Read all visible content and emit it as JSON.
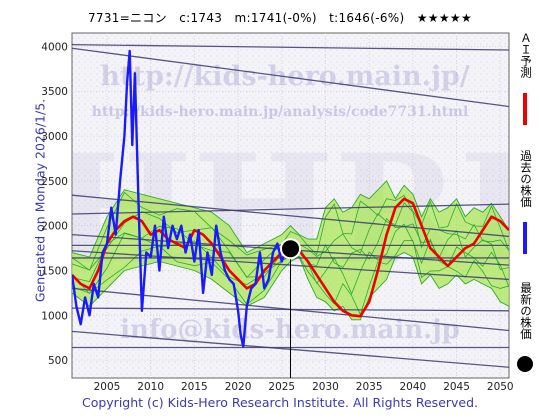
{
  "header": {
    "title": "7731=ニコン　c:1743　m:1741(-0%)　t:1646(-6%)　★★★★★"
  },
  "ylabel": "Generated on Monday 2026/1/5.",
  "footer": "Copyright (c) Kids-Hero Research Institute. All Rights Reserved.",
  "watermarks": {
    "site": "http://kids-hero.main.jp/",
    "page": "http://kids-hero.main.jp/analysis/code7731.html",
    "email": "info@kids-hero.main.jp",
    "logo": "HHRI"
  },
  "legend": {
    "ai": "ＡＩ予測",
    "past": "過去の株価",
    "latest": "最新の株価"
  },
  "colors": {
    "past": "#1a1aff",
    "ai": "#ee0000",
    "band_fill": "#a6e64d",
    "band_line": "#2eaa2e",
    "trend": "#3b3b6e",
    "dot": "#000000"
  },
  "chart_data": {
    "type": "line",
    "xlim": [
      2001,
      2051
    ],
    "ylim": [
      300,
      4150
    ],
    "xticks": [
      2005,
      2010,
      2015,
      2020,
      2025,
      2030,
      2035,
      2040,
      2045,
      2050
    ],
    "yticks": [
      500,
      1000,
      1500,
      2000,
      2500,
      3000,
      3500,
      4000
    ],
    "grid": true,
    "current": {
      "x": 2026.0,
      "y": 1743
    },
    "series": [
      {
        "name": "過去の株価",
        "x": [
          2001,
          2001.5,
          2002,
          2002.5,
          2003,
          2003.5,
          2004,
          2004.5,
          2005,
          2005.5,
          2006,
          2006.5,
          2007,
          2007.3,
          2007.6,
          2007.9,
          2008.2,
          2008.6,
          2009,
          2009.5,
          2010,
          2010.5,
          2011,
          2011.5,
          2012,
          2012.5,
          2013,
          2013.5,
          2014,
          2014.5,
          2015,
          2015.5,
          2016,
          2016.5,
          2017,
          2017.5,
          2018,
          2018.5,
          2019,
          2019.5,
          2020,
          2020.3,
          2020.6,
          2021,
          2021.5,
          2022,
          2022.5,
          2023,
          2023.5,
          2024,
          2024.5,
          2025,
          2025.5,
          2026
        ],
        "y": [
          1450,
          1100,
          900,
          1200,
          1000,
          1350,
          1200,
          1700,
          1800,
          2200,
          1900,
          2500,
          3000,
          3600,
          3950,
          2900,
          3700,
          2300,
          1050,
          1700,
          1650,
          2000,
          1500,
          2100,
          1750,
          2000,
          1850,
          2000,
          1700,
          1900,
          1600,
          1950,
          1250,
          1700,
          1450,
          2000,
          1700,
          1500,
          1400,
          1350,
          1050,
          780,
          650,
          1100,
          1300,
          1350,
          1700,
          1300,
          1400,
          1700,
          1800,
          1600,
          1750,
          1743
        ]
      },
      {
        "name": "ＡＩ予測",
        "x": [
          2001,
          2002,
          2003,
          2004,
          2005,
          2006,
          2007,
          2008,
          2009,
          2010,
          2011,
          2012,
          2013,
          2014,
          2015,
          2016,
          2017,
          2018,
          2019,
          2020,
          2021,
          2022,
          2023,
          2024,
          2025,
          2026,
          2027,
          2028,
          2029,
          2030,
          2031,
          2032,
          2033,
          2034,
          2035,
          2036,
          2037,
          2038,
          2039,
          2040,
          2041,
          2042,
          2043,
          2044,
          2045,
          2046,
          2047,
          2048,
          2049,
          2050,
          2051
        ],
        "y": [
          1450,
          1350,
          1300,
          1500,
          1800,
          1950,
          2050,
          2100,
          2050,
          1900,
          1950,
          1850,
          1800,
          1750,
          1950,
          1900,
          1800,
          1650,
          1500,
          1400,
          1300,
          1350,
          1500,
          1600,
          1700,
          1780,
          1720,
          1600,
          1450,
          1300,
          1150,
          1050,
          1000,
          990,
          1150,
          1500,
          1900,
          2200,
          2300,
          2250,
          2000,
          1750,
          1650,
          1550,
          1650,
          1750,
          1800,
          1950,
          2100,
          2050,
          1950
        ]
      },
      {
        "name": "band_upper",
        "x": [
          2001,
          2003,
          2005,
          2007,
          2009,
          2011,
          2013,
          2015,
          2017,
          2019,
          2021,
          2023,
          2025,
          2026,
          2027,
          2028,
          2029,
          2030,
          2031,
          2032,
          2033,
          2034,
          2035,
          2036,
          2037,
          2038,
          2039,
          2040,
          2041,
          2042,
          2043,
          2044,
          2045,
          2046,
          2047,
          2048,
          2049,
          2050,
          2051
        ],
        "y": [
          1700,
          1650,
          2100,
          2400,
          2350,
          2300,
          2250,
          2200,
          2150,
          2000,
          1700,
          1800,
          1900,
          2000,
          1900,
          1850,
          1850,
          2200,
          2300,
          2150,
          2200,
          2350,
          2300,
          2400,
          2500,
          2300,
          2450,
          2350,
          2100,
          2300,
          2150,
          2200,
          2300,
          2100,
          2200,
          2150,
          2250,
          2100,
          1950
        ]
      },
      {
        "name": "band_lower",
        "x": [
          2001,
          2003,
          2005,
          2007,
          2009,
          2011,
          2013,
          2015,
          2017,
          2019,
          2021,
          2023,
          2025,
          2026,
          2027,
          2028,
          2029,
          2030,
          2031,
          2032,
          2033,
          2034,
          2035,
          2036,
          2037,
          2038,
          2039,
          2040,
          2041,
          2042,
          2043,
          2044,
          2045,
          2046,
          2047,
          2048,
          2049,
          2050,
          2051
        ],
        "y": [
          1250,
          1100,
          1300,
          1500,
          1550,
          1600,
          1550,
          1500,
          1400,
          1250,
          1100,
          1200,
          1500,
          1600,
          1650,
          1400,
          1200,
          1150,
          1050,
          1100,
          950,
          950,
          1200,
          1300,
          1400,
          1650,
          1700,
          1650,
          1350,
          1450,
          1300,
          1350,
          1450,
          1350,
          1400,
          1350,
          1300,
          1150,
          1100
        ]
      }
    ],
    "trend_lines": [
      [
        [
          2001,
          4020
        ],
        [
          2051,
          3960
        ]
      ],
      [
        [
          2001,
          3980
        ],
        [
          2051,
          3330
        ]
      ],
      [
        [
          2001,
          2340
        ],
        [
          2051,
          1880
        ]
      ],
      [
        [
          2001,
          2130
        ],
        [
          2051,
          2240
        ]
      ],
      [
        [
          2001,
          1900
        ],
        [
          2051,
          1560
        ]
      ],
      [
        [
          2001,
          1780
        ],
        [
          2051,
          1780
        ]
      ],
      [
        [
          2001,
          1640
        ],
        [
          2051,
          1640
        ]
      ],
      [
        [
          2001,
          1720
        ],
        [
          2051,
          1400
        ]
      ],
      [
        [
          2001,
          1300
        ],
        [
          2051,
          830
        ]
      ],
      [
        [
          2001,
          1080
        ],
        [
          2051,
          1050
        ]
      ],
      [
        [
          2001,
          820
        ],
        [
          2051,
          420
        ]
      ],
      [
        [
          2001,
          640
        ],
        [
          2051,
          640
        ]
      ]
    ]
  }
}
